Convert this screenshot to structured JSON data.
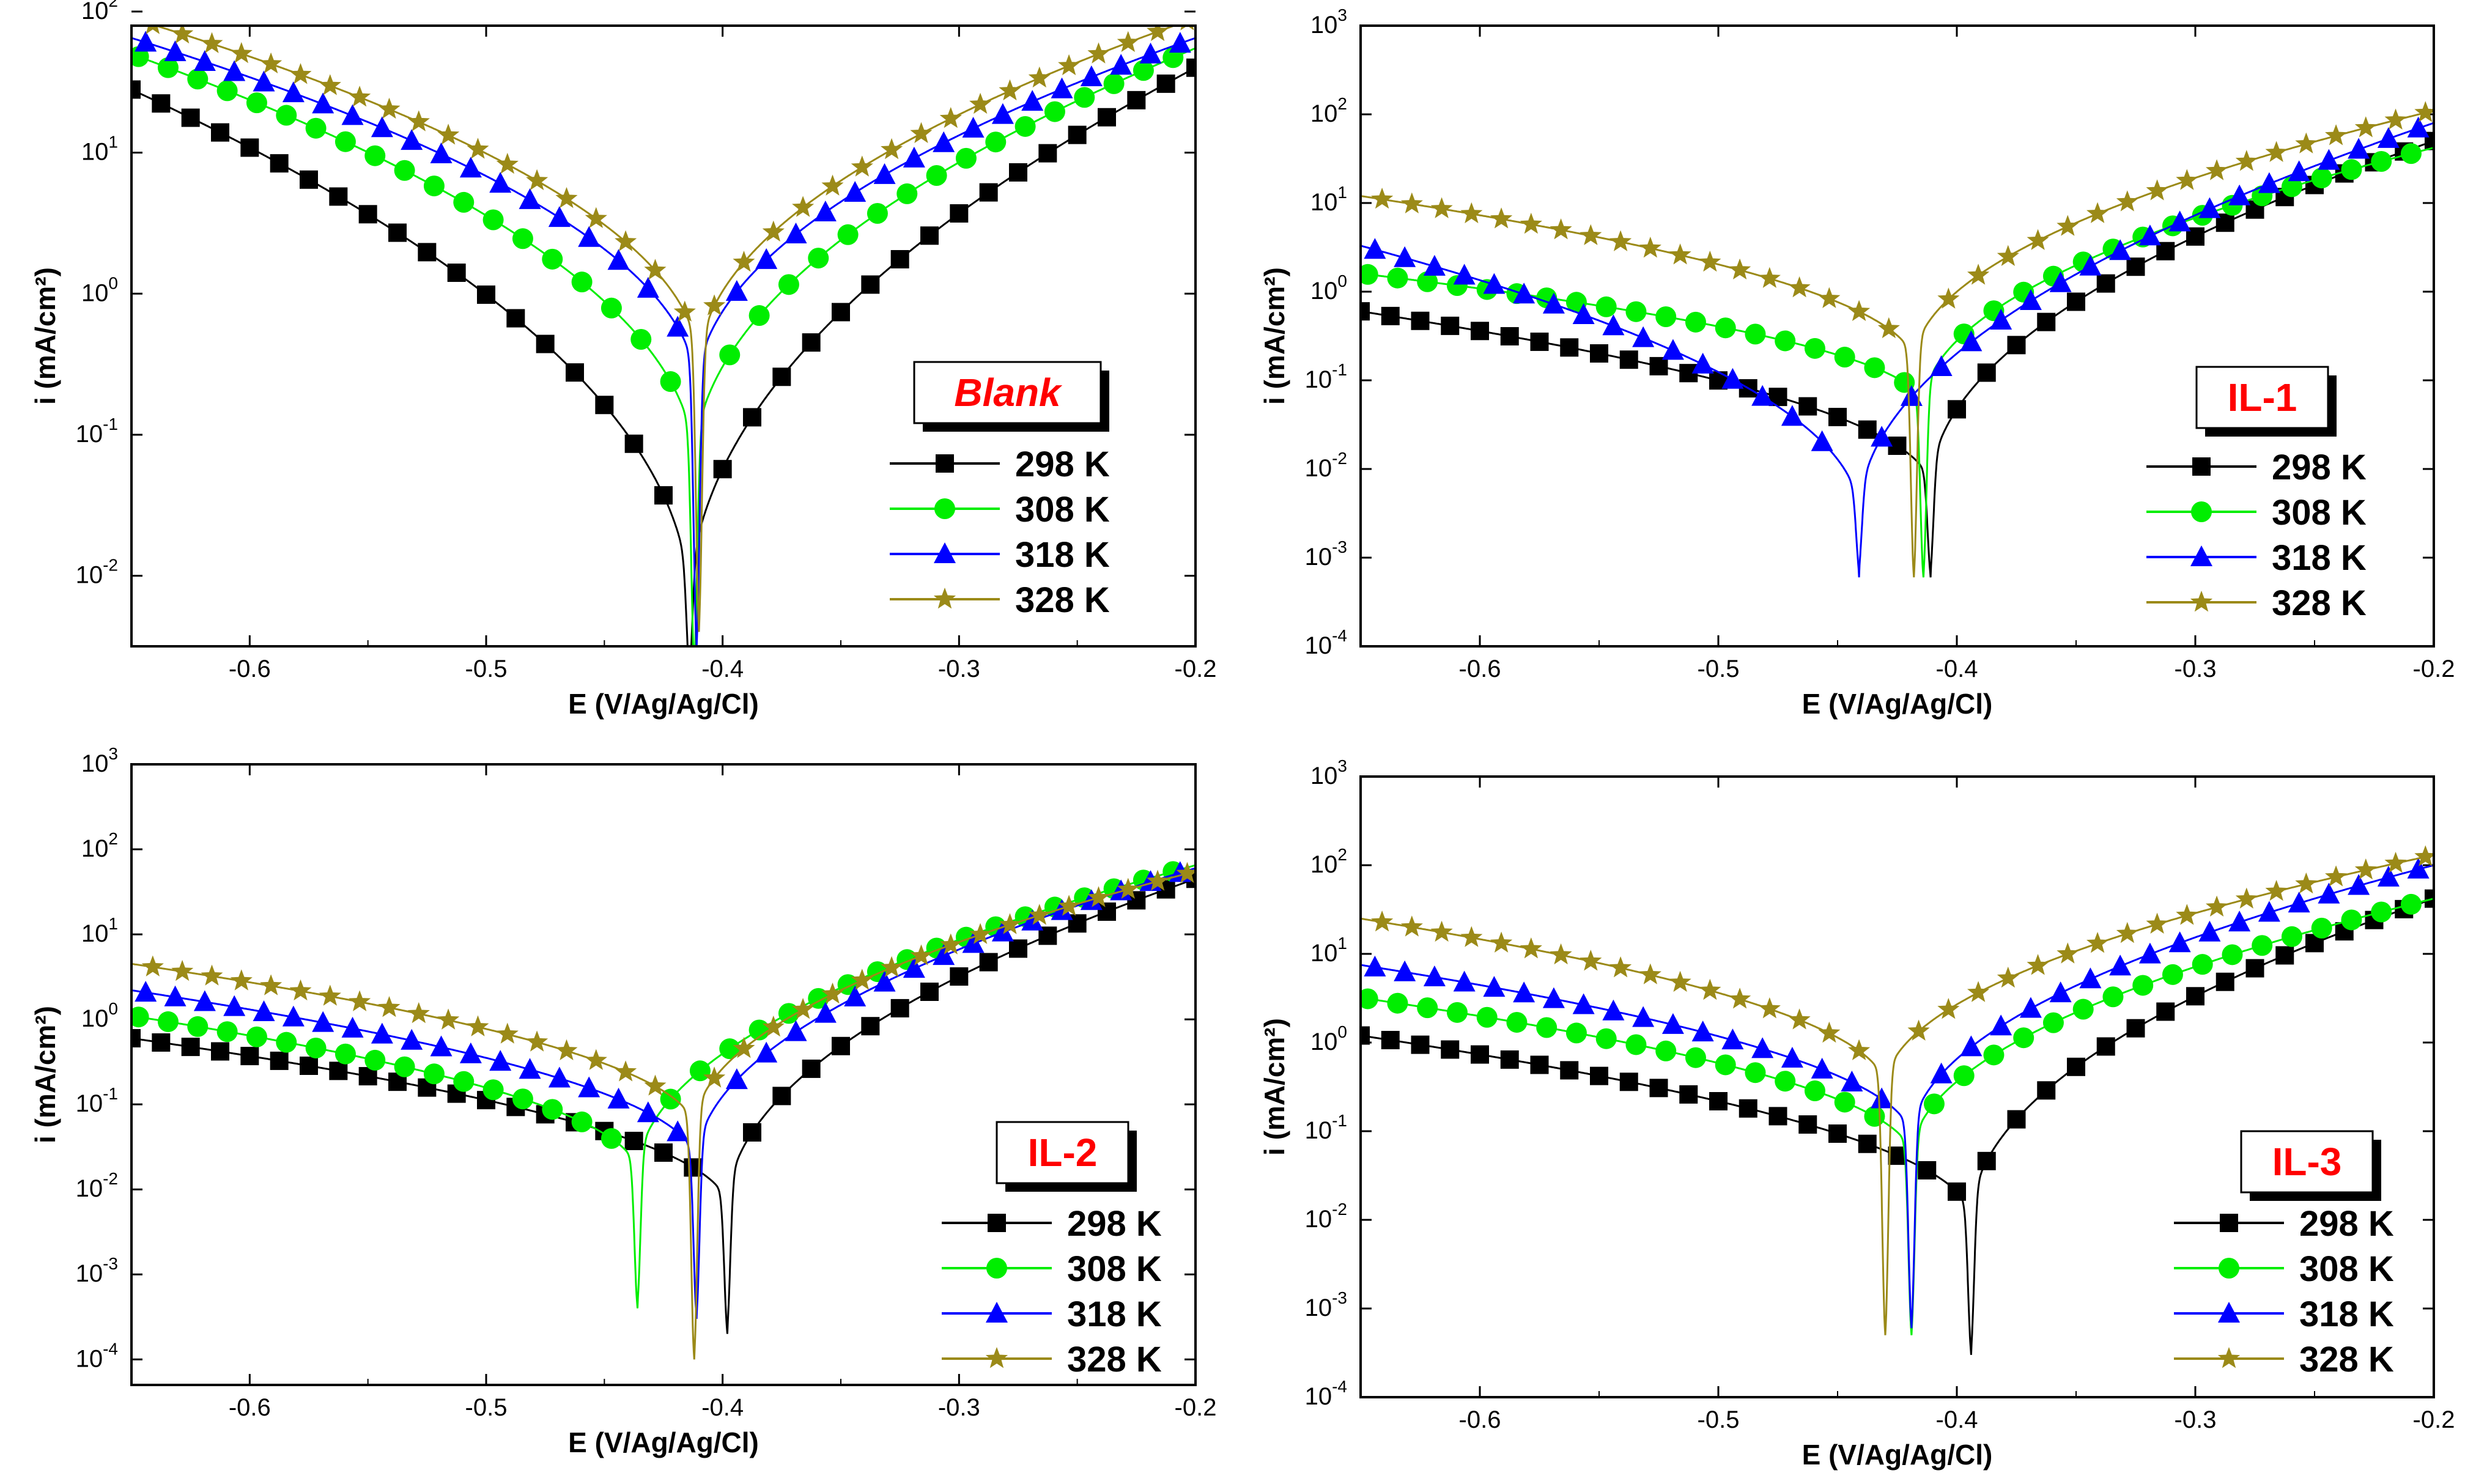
{
  "chart_data": [
    {
      "type": "line",
      "title": "",
      "label": "Blank",
      "xlabel": "E (V/Ag/Ag/Cl)",
      "ylabel": "i (mA/cm²)",
      "xlim": [
        -0.65,
        -0.2
      ],
      "ylim_log10": [
        -2.5,
        1.9
      ],
      "x_ticks": [
        "-0.6",
        "-0.5",
        "-0.4",
        "-0.3",
        "-0.2"
      ],
      "y_ticks": [
        {
          "base": "10",
          "exp": "-2"
        },
        {
          "base": "10",
          "exp": "-1"
        },
        {
          "base": "10",
          "exp": "0"
        },
        {
          "base": "10",
          "exp": "1"
        },
        {
          "base": "10",
          "exp": "2"
        }
      ],
      "legend_position": "bottom-right",
      "series": [
        {
          "name": "298 K",
          "color": "#000000",
          "marker": "square",
          "ecorr": -0.414,
          "i_corr": 0.006,
          "i_left": 28,
          "i_right": 40,
          "spike": 0.0015
        },
        {
          "name": "308 K",
          "color": "#00ee00",
          "marker": "circle",
          "ecorr": -0.412,
          "i_corr": 0.06,
          "i_left": 50,
          "i_right": 55,
          "spike": 0.002
        },
        {
          "name": "318 K",
          "color": "#0000ff",
          "marker": "triangle",
          "ecorr": -0.411,
          "i_corr": 0.2,
          "i_left": 65,
          "i_right": 65,
          "spike": 0.003
        },
        {
          "name": "328 K",
          "color": "#9b8a18",
          "marker": "star",
          "ecorr": -0.41,
          "i_corr": 0.3,
          "i_left": 90,
          "i_right": 90,
          "spike": 0.004
        }
      ]
    },
    {
      "type": "line",
      "title": "",
      "label": "IL-1",
      "xlabel": "E (V/Ag/Ag/Cl)",
      "ylabel": "i (mA/cm²)",
      "xlim": [
        -0.65,
        -0.2
      ],
      "ylim_log10": [
        -4,
        3
      ],
      "x_ticks": [
        "-0.6",
        "-0.5",
        "-0.4",
        "-0.3",
        "-0.2"
      ],
      "y_ticks": [
        {
          "base": "10",
          "exp": "-4"
        },
        {
          "base": "10",
          "exp": "-3"
        },
        {
          "base": "10",
          "exp": "-2"
        },
        {
          "base": "10",
          "exp": "-1"
        },
        {
          "base": "10",
          "exp": "0"
        },
        {
          "base": "10",
          "exp": "1"
        },
        {
          "base": "10",
          "exp": "2"
        },
        {
          "base": "10",
          "exp": "3"
        }
      ],
      "legend_position": "bottom-right",
      "series": [
        {
          "name": "298 K",
          "color": "#000000",
          "marker": "square",
          "ecorr": -0.411,
          "i_corr": 0.006,
          "i_left": 0.6,
          "i_right": 50,
          "spike": 0.0006
        },
        {
          "name": "308 K",
          "color": "#00ee00",
          "marker": "circle",
          "ecorr": -0.414,
          "i_corr": 0.05,
          "i_left": 1.6,
          "i_right": 42,
          "spike": 0.0006
        },
        {
          "name": "318 K",
          "color": "#0000ff",
          "marker": "triangle",
          "ecorr": -0.441,
          "i_corr": 0.003,
          "i_left": 3.3,
          "i_right": 80,
          "spike": 0.0006
        },
        {
          "name": "328 K",
          "color": "#9b8a18",
          "marker": "star",
          "ecorr": -0.418,
          "i_corr": 0.15,
          "i_left": 12,
          "i_right": 110,
          "spike": 0.0006
        }
      ]
    },
    {
      "type": "line",
      "title": "",
      "label": "IL-2",
      "xlabel": "E (V/Ag/Ag/Cl)",
      "ylabel": "i (mA/cm²)",
      "xlim": [
        -0.65,
        -0.2
      ],
      "ylim_log10": [
        -4.3,
        3
      ],
      "x_ticks": [
        "-0.6",
        "-0.5",
        "-0.4",
        "-0.3",
        "-0.2"
      ],
      "y_ticks": [
        {
          "base": "10",
          "exp": "-4"
        },
        {
          "base": "10",
          "exp": "-3"
        },
        {
          "base": "10",
          "exp": "-2"
        },
        {
          "base": "10",
          "exp": "-1"
        },
        {
          "base": "10",
          "exp": "0"
        },
        {
          "base": "10",
          "exp": "1"
        },
        {
          "base": "10",
          "exp": "2"
        },
        {
          "base": "10",
          "exp": "3"
        }
      ],
      "legend_position": "bottom-right",
      "series": [
        {
          "name": "298 K",
          "color": "#000000",
          "marker": "square",
          "ecorr": -0.398,
          "i_corr": 0.006,
          "i_left": 0.6,
          "i_right": 45,
          "spike": 0.0002
        },
        {
          "name": "308 K",
          "color": "#00ee00",
          "marker": "circle",
          "ecorr": -0.436,
          "i_corr": 0.015,
          "i_left": 1.1,
          "i_right": 65,
          "spike": 0.0004
        },
        {
          "name": "318 K",
          "color": "#0000ff",
          "marker": "triangle",
          "ecorr": -0.411,
          "i_corr": 0.02,
          "i_left": 2.2,
          "i_right": 60,
          "spike": 0.0003
        },
        {
          "name": "328 K",
          "color": "#9b8a18",
          "marker": "star",
          "ecorr": -0.412,
          "i_corr": 0.05,
          "i_left": 4.5,
          "i_right": 55,
          "spike": 0.0001
        }
      ]
    },
    {
      "type": "line",
      "title": "",
      "label": "IL-3",
      "xlabel": "E (V/Ag/Ag/Cl)",
      "ylabel": "i (mA/cm²)",
      "xlim": [
        -0.65,
        -0.2
      ],
      "ylim_log10": [
        -4,
        3
      ],
      "x_ticks": [
        "-0.6",
        "-0.5",
        "-0.4",
        "-0.3",
        "-0.2"
      ],
      "y_ticks": [
        {
          "base": "10",
          "exp": "-4"
        },
        {
          "base": "10",
          "exp": "-3"
        },
        {
          "base": "10",
          "exp": "-2"
        },
        {
          "base": "10",
          "exp": "-1"
        },
        {
          "base": "10",
          "exp": "0"
        },
        {
          "base": "10",
          "exp": "1"
        },
        {
          "base": "10",
          "exp": "2"
        },
        {
          "base": "10",
          "exp": "3"
        }
      ],
      "legend_position": "bottom-right",
      "series": [
        {
          "name": "298 K",
          "color": "#000000",
          "marker": "square",
          "ecorr": -0.394,
          "i_corr": 0.01,
          "i_left": 1.2,
          "i_right": 42,
          "spike": 0.0003
        },
        {
          "name": "308 K",
          "color": "#00ee00",
          "marker": "circle",
          "ecorr": -0.419,
          "i_corr": 0.05,
          "i_left": 3.2,
          "i_right": 42,
          "spike": 0.0005
        },
        {
          "name": "318 K",
          "color": "#0000ff",
          "marker": "triangle",
          "ecorr": -0.419,
          "i_corr": 0.08,
          "i_left": 7.5,
          "i_right": 100,
          "spike": 0.0006
        },
        {
          "name": "328 K",
          "color": "#9b8a18",
          "marker": "star",
          "ecorr": -0.43,
          "i_corr": 0.3,
          "i_left": 25,
          "i_right": 130,
          "spike": 0.0005
        }
      ]
    }
  ]
}
